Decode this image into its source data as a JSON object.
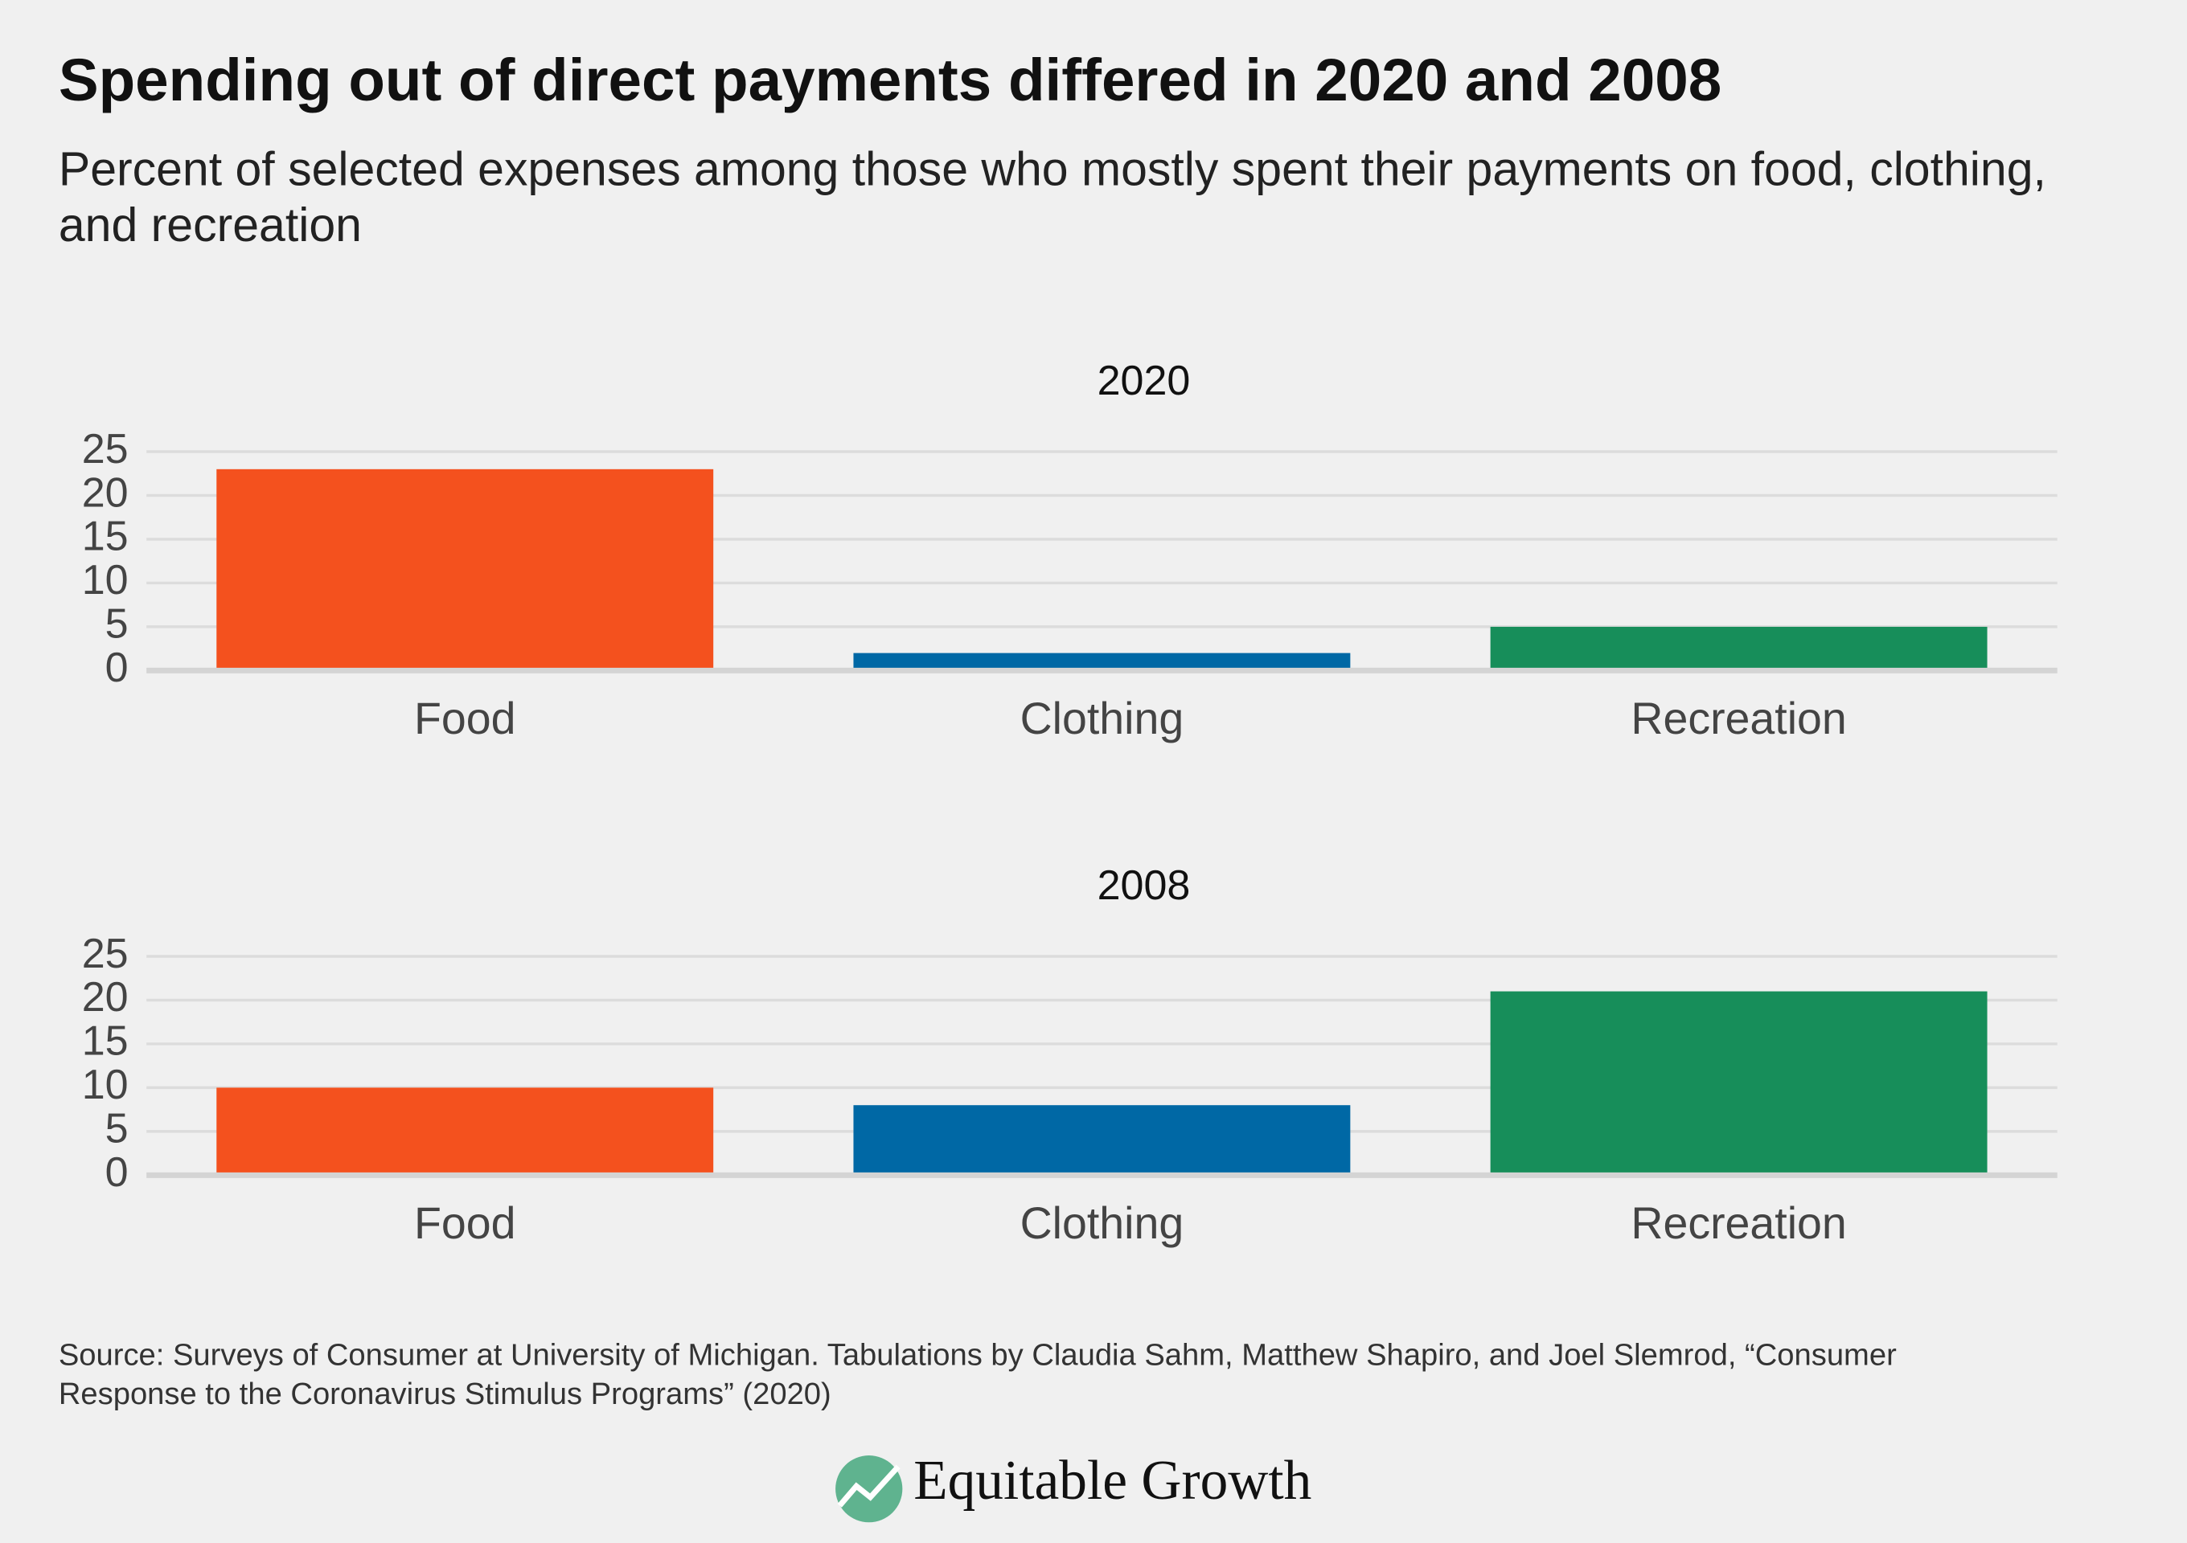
{
  "title": "Spending out of direct payments differed in 2020 and 2008",
  "subtitle": "Percent of selected expenses among those who mostly spent their payments on food, clothing, and recreation",
  "source": "Source: Surveys of Consumer at University of Michigan. Tabulations by Claudia Sahm, Matthew Shapiro, and Joel Slemrod, “Consumer Response to the Coronavirus Stimulus Programs” (2020)",
  "logo": "Equitable Growth",
  "chart_data": [
    {
      "type": "bar",
      "title": "2020",
      "categories": [
        "Food",
        "Clothing",
        "Recreation"
      ],
      "values": [
        23,
        2,
        5
      ],
      "colors": [
        "#f4511e",
        "#0068a5",
        "#178e5a"
      ],
      "ylim": [
        0,
        25
      ],
      "yticks": [
        0,
        5,
        10,
        15,
        20,
        25
      ],
      "grid": true
    },
    {
      "type": "bar",
      "title": "2008",
      "categories": [
        "Food",
        "Clothing",
        "Recreation"
      ],
      "values": [
        10,
        8,
        21
      ],
      "colors": [
        "#f4511e",
        "#0068a5",
        "#178e5a"
      ],
      "ylim": [
        0,
        25
      ],
      "yticks": [
        0,
        5,
        10,
        15,
        20,
        25
      ],
      "grid": true
    }
  ]
}
